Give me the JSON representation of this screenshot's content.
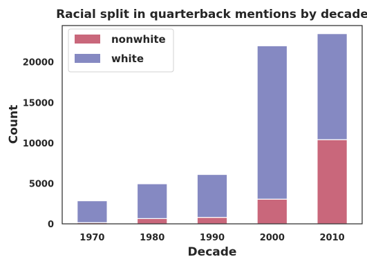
{
  "chart_data": {
    "type": "bar",
    "stacked": true,
    "title": "Racial split in quarterback mentions by decade",
    "xlabel": "Decade",
    "ylabel": "Count",
    "categories": [
      "1970",
      "1980",
      "1990",
      "2000",
      "2010"
    ],
    "ylim": [
      0,
      24500
    ],
    "yticks": [
      0,
      5000,
      10000,
      15000,
      20000
    ],
    "ytick_labels": [
      "0",
      "5000",
      "10000",
      "15000",
      "20000"
    ],
    "series": [
      {
        "name": "nonwhite",
        "color": "#c9677b",
        "values": [
          150,
          650,
          800,
          3050,
          10400
        ]
      },
      {
        "name": "white",
        "color": "#8589c2",
        "values": [
          2700,
          4300,
          5300,
          18950,
          13100
        ]
      }
    ],
    "legend": "top-left",
    "grid": false
  }
}
